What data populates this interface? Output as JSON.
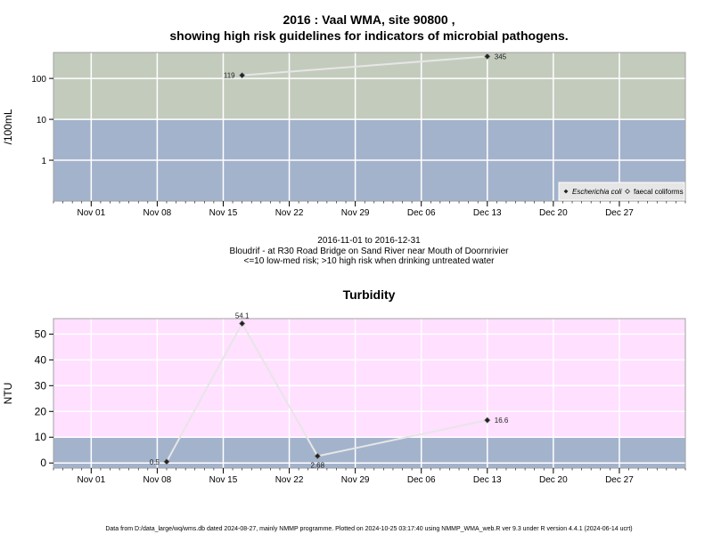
{
  "title_line1": "2016 : Vaal WMA, site 90800 ,",
  "title_line2": "showing high risk guidelines for indicators of microbial pathogens.",
  "period": "2016-11-01 to 2016-12-31",
  "site_desc": "Bloudrif - at R30 Road Bridge on Sand River near Mouth of Doornrivier",
  "risk_note": "<=10 low-med risk; >10 high risk when drinking untreated water",
  "turbidity_title": "Turbidity",
  "footer": "Data from D:/data_large/wq/wms.db dated 2024-08-27, mainly NMMP programme. Plotted on 2024-10-25 03:17:40 using NMMP_WMA_web.R ver 9.3 under R version 4.4.1 (2024-06-14 ucrt)",
  "colors": {
    "high_risk_band": "#c3cbbd",
    "low_risk_band": "#a4b3cc",
    "turbidity_high_band": "#ffe0ff",
    "grid": "#ffffff",
    "line": "#e6e6e6",
    "marker": "#222222",
    "legend_bg": "#e6e6e6"
  },
  "chart_data": [
    {
      "type": "line",
      "ylabel": "/100mL",
      "y_scale": "log10",
      "ylim": [
        0.1,
        430
      ],
      "y_ticks": [
        1,
        10,
        100
      ],
      "y_tick_labels": [
        "1",
        "10",
        "100"
      ],
      "threshold": 10,
      "x_tick_dates": [
        "2016-11-01",
        "2016-11-08",
        "2016-11-15",
        "2016-11-22",
        "2016-11-29",
        "2016-12-06",
        "2016-12-13",
        "2016-12-20",
        "2016-12-27"
      ],
      "x_tick_labels": [
        "Nov 01",
        "Nov 08",
        "Nov 15",
        "Nov 22",
        "Nov 29",
        "Dec 06",
        "Dec 13",
        "Dec 20",
        "Dec 27"
      ],
      "series": [
        {
          "name": "Escherichia coli",
          "marker": "filled-diamond",
          "x": [
            "2016-11-17",
            "2016-12-13"
          ],
          "values": [
            119,
            345
          ],
          "labels": [
            "119",
            "345"
          ]
        },
        {
          "name": "faecal coliforms",
          "marker": "open-diamond",
          "x": [],
          "values": [],
          "labels": []
        }
      ],
      "legend_position": "bottom-right",
      "grid": true
    },
    {
      "type": "line",
      "ylabel": "NTU",
      "ylim": [
        -2,
        56
      ],
      "y_ticks": [
        0,
        10,
        20,
        30,
        40,
        50
      ],
      "y_tick_labels": [
        "0",
        "10",
        "20",
        "30",
        "40",
        "50"
      ],
      "threshold": 10,
      "x_tick_dates": [
        "2016-11-01",
        "2016-11-08",
        "2016-11-15",
        "2016-11-22",
        "2016-11-29",
        "2016-12-06",
        "2016-12-13",
        "2016-12-20",
        "2016-12-27"
      ],
      "x_tick_labels": [
        "Nov 01",
        "Nov 08",
        "Nov 15",
        "Nov 22",
        "Nov 29",
        "Dec 06",
        "Dec 13",
        "Dec 20",
        "Dec 27"
      ],
      "series": [
        {
          "x": [
            "2016-11-09",
            "2016-11-17",
            "2016-11-25",
            "2016-12-13"
          ],
          "values": [
            0.5,
            54.1,
            2.68,
            16.6
          ],
          "labels": [
            "0.5",
            "54.1",
            "2.68",
            "16.6"
          ]
        }
      ],
      "grid": true
    }
  ]
}
